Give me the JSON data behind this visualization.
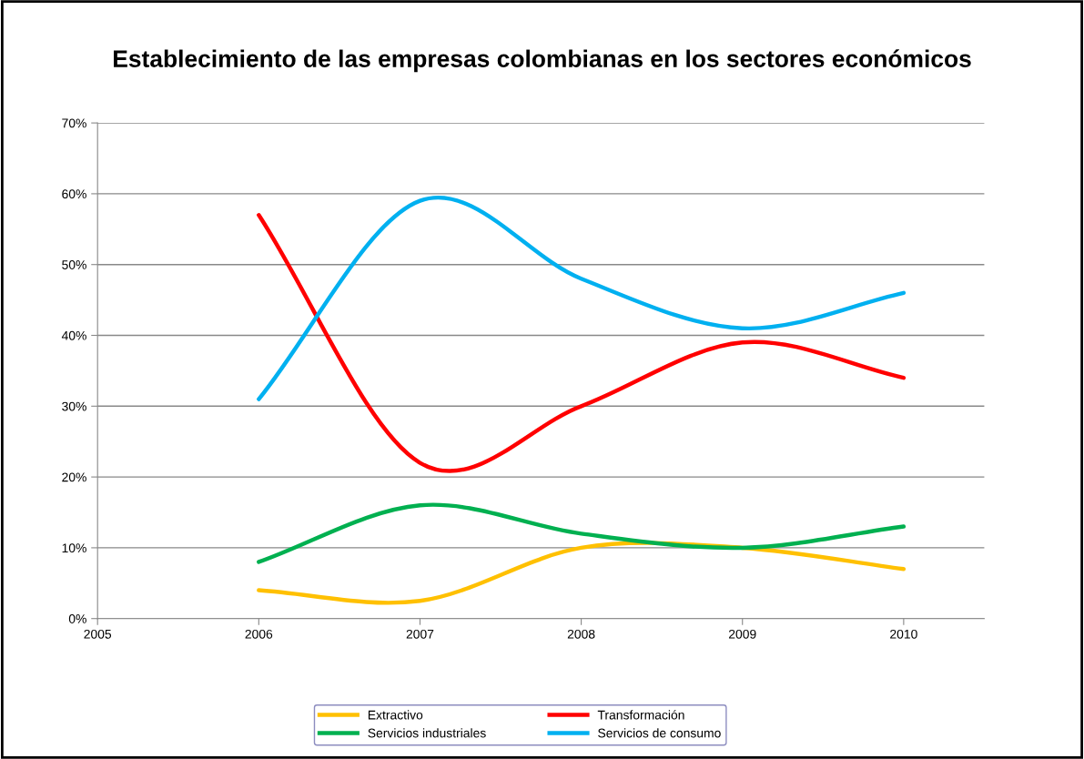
{
  "chart_data": {
    "type": "line",
    "title": "Establecimiento de las empresas colombianas en los sectores económicos",
    "x": [
      2006,
      2007,
      2008,
      2009,
      2010
    ],
    "series": [
      {
        "name": "Extractivo",
        "color": "#ffc000",
        "values": [
          4,
          2.5,
          10,
          10,
          7
        ]
      },
      {
        "name": "Transformación",
        "color": "#ff0000",
        "values": [
          57,
          22,
          30,
          39,
          34
        ]
      },
      {
        "name": "Servicios industriales",
        "color": "#00b050",
        "values": [
          8,
          16,
          12,
          10,
          13
        ]
      },
      {
        "name": "Servicios de consumo",
        "color": "#00b0f0",
        "values": [
          31,
          59,
          48,
          41,
          46
        ]
      }
    ],
    "xlim": [
      2005,
      2010.5
    ],
    "xticks": [
      2005,
      2006,
      2007,
      2008,
      2009,
      2010
    ],
    "ylim": [
      0,
      70
    ],
    "yticks": [
      {
        "value": 0,
        "label": "0%"
      },
      {
        "value": 10,
        "label": "10%"
      },
      {
        "value": 20,
        "label": "20%"
      },
      {
        "value": 30,
        "label": "30%"
      },
      {
        "value": 40,
        "label": "40%"
      },
      {
        "value": 50,
        "label": "50%"
      },
      {
        "value": 60,
        "label": "60%"
      },
      {
        "value": 70,
        "label": "70%"
      }
    ],
    "grid": "y",
    "legend": "bottom",
    "marker": "none",
    "line_style": "solid"
  }
}
